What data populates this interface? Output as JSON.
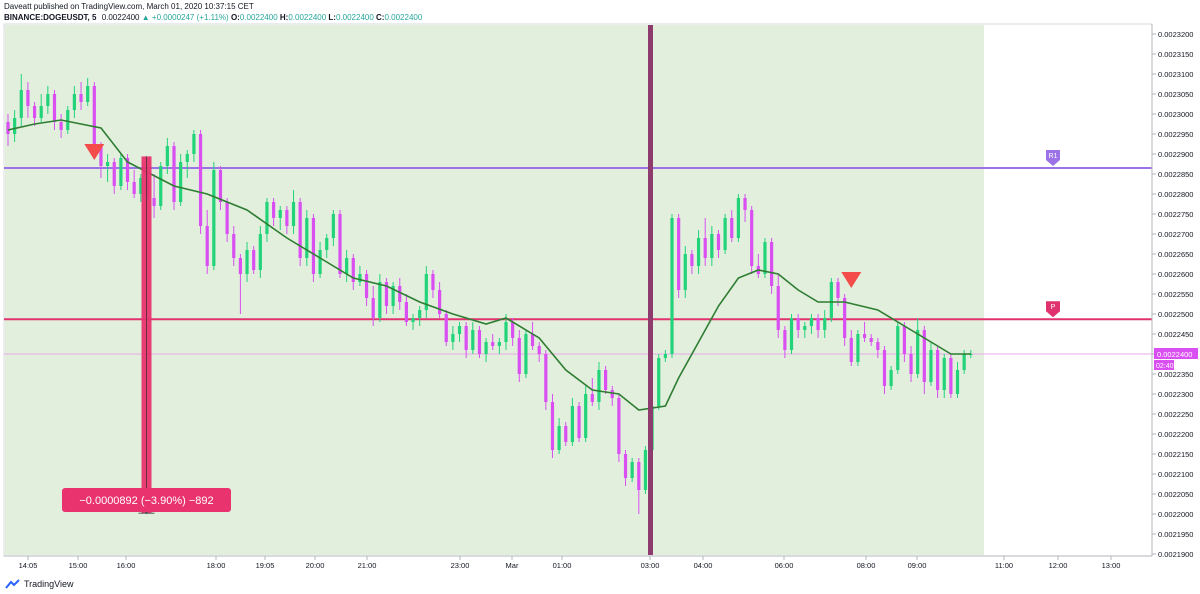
{
  "header": {
    "line1": "Daveatt published on TradingView.com, March 01, 2020 10:37:15 CET",
    "symbol": "BINANCE:DOGEUSDT, 5",
    "last": "0.0022400",
    "change": "▲ +0.0000247 (+1.11%)",
    "o_label": "O:",
    "o": "0.0022400",
    "h_label": "H:",
    "h": "0.0022400",
    "l_label": "L:",
    "l": "0.0022400",
    "c_label": "C:",
    "c": "0.0022400"
  },
  "footer": {
    "brand": "TradingView",
    "logo_icon": "tradingview-logo-icon"
  },
  "colors": {
    "bull": "#22d37a",
    "bear": "#d94ff2",
    "ema": "#2e7d32",
    "session_bg": "#e1efdc",
    "r1_line": "#9c73e6",
    "pivot_line": "#e0326e",
    "price_line": "#e8a8e8",
    "measure_bar": "#e8336f",
    "session_marker": "#8e3b6e",
    "signal": "#f44b4b"
  },
  "chart_data": {
    "type": "candlestick",
    "symbol": "BINANCE:DOGEUSDT",
    "interval": "5",
    "ylim": [
      0.00219,
      0.00232
    ],
    "y_ticks": [
      "0.0021900",
      "0.0021950",
      "0.0022000",
      "0.0022050",
      "0.0022100",
      "0.0022150",
      "0.0022200",
      "0.0022250",
      "0.0022300",
      "0.0022350",
      "0.0022400",
      "0.0022450",
      "0.0022500",
      "0.0022550",
      "0.0022600",
      "0.0022650",
      "0.0022700",
      "0.0022750",
      "0.0022800",
      "0.0022850",
      "0.0022900",
      "0.0022950",
      "0.0023000",
      "0.0023050",
      "0.0023100",
      "0.0023150",
      "0.0023200"
    ],
    "x_ticks": [
      "14:05",
      "15:00",
      "16:00",
      "18:00",
      "19:05",
      "20:00",
      "21:00",
      "23:00",
      "Mar",
      "01:00",
      "03:00",
      "04:00",
      "06:00",
      "08:00",
      "09:00",
      "11:00",
      "12:00",
      "13:00"
    ],
    "levels": [
      {
        "label": "R1",
        "value": 0.0022865
      },
      {
        "label": "P",
        "value": 0.0022487
      },
      {
        "label": "0.0022400",
        "value": 0.00224,
        "countdown": "02:40"
      }
    ],
    "measure": {
      "text": "−0.0000892 (−3.90%) −892",
      "from": 0.0022894,
      "to": 0.0022002
    },
    "session_marker_time": "03:00",
    "signals": [
      {
        "type": "sell"
      },
      {
        "type": "sell"
      }
    ],
    "ema_path": [
      [
        0,
        0.002296
      ],
      [
        4,
        0.0022975
      ],
      [
        8,
        0.0022985
      ],
      [
        14,
        0.0022965
      ],
      [
        18,
        0.002288
      ],
      [
        25,
        0.002282
      ],
      [
        30,
        0.00228
      ],
      [
        36,
        0.002276
      ],
      [
        42,
        0.002269
      ],
      [
        47,
        0.002264
      ],
      [
        52,
        0.002259
      ],
      [
        57,
        0.002257
      ],
      [
        62,
        0.002253
      ],
      [
        67,
        0.00225
      ],
      [
        72,
        0.0022475
      ],
      [
        75,
        0.002249
      ],
      [
        80,
        0.002244
      ],
      [
        84,
        0.002236
      ],
      [
        88,
        0.002231
      ],
      [
        92,
        0.00223
      ],
      [
        95,
        0.002226
      ],
      [
        99,
        0.002227
      ],
      [
        101,
        0.002234
      ],
      [
        104,
        0.002243
      ],
      [
        107,
        0.002252
      ],
      [
        110,
        0.002259
      ],
      [
        113,
        0.002261
      ],
      [
        116,
        0.00226
      ],
      [
        119,
        0.002256
      ],
      [
        122,
        0.002253
      ],
      [
        126,
        0.002253
      ],
      [
        131,
        0.002251
      ],
      [
        135,
        0.002247
      ],
      [
        139,
        0.002243
      ],
      [
        142,
        0.00224
      ],
      [
        145,
        0.00224
      ]
    ],
    "candles": [
      {
        "o": 0.002298,
        "h": 0.0023,
        "l": 0.002292,
        "c": 0.002295
      },
      {
        "o": 0.002295,
        "h": 0.002301,
        "l": 0.002293,
        "c": 0.002299
      },
      {
        "o": 0.002299,
        "h": 0.00231,
        "l": 0.002297,
        "c": 0.002306
      },
      {
        "o": 0.002306,
        "h": 0.002308,
        "l": 0.002299,
        "c": 0.002302
      },
      {
        "o": 0.002302,
        "h": 0.002303,
        "l": 0.002297,
        "c": 0.002299
      },
      {
        "o": 0.002299,
        "h": 0.002305,
        "l": 0.002298,
        "c": 0.002302
      },
      {
        "o": 0.002302,
        "h": 0.002307,
        "l": 0.0023,
        "c": 0.002305
      },
      {
        "o": 0.002305,
        "h": 0.002306,
        "l": 0.002296,
        "c": 0.002298
      },
      {
        "o": 0.002298,
        "h": 0.0023,
        "l": 0.002294,
        "c": 0.002296
      },
      {
        "o": 0.002296,
        "h": 0.002302,
        "l": 0.002295,
        "c": 0.002301
      },
      {
        "o": 0.002301,
        "h": 0.002307,
        "l": 0.002299,
        "c": 0.002305
      },
      {
        "o": 0.002305,
        "h": 0.002308,
        "l": 0.002301,
        "c": 0.002303
      },
      {
        "o": 0.002303,
        "h": 0.002309,
        "l": 0.002302,
        "c": 0.002307
      },
      {
        "o": 0.002307,
        "h": 0.002308,
        "l": 0.00229,
        "c": 0.002292
      },
      {
        "o": 0.002292,
        "h": 0.002293,
        "l": 0.002284,
        "c": 0.002287
      },
      {
        "o": 0.002287,
        "h": 0.00229,
        "l": 0.002283,
        "c": 0.002288
      },
      {
        "o": 0.002288,
        "h": 0.002289,
        "l": 0.00228,
        "c": 0.002282
      },
      {
        "o": 0.002282,
        "h": 0.00229,
        "l": 0.002281,
        "c": 0.002289
      },
      {
        "o": 0.002289,
        "h": 0.00229,
        "l": 0.002281,
        "c": 0.002283
      },
      {
        "o": 0.002283,
        "h": 0.002286,
        "l": 0.002279,
        "c": 0.00228
      },
      {
        "o": 0.00228,
        "h": 0.002285,
        "l": 0.002278,
        "c": 0.002284
      },
      {
        "o": 0.002284,
        "h": 0.002286,
        "l": 0.002278,
        "c": 0.002279
      },
      {
        "o": 0.002279,
        "h": 0.002285,
        "l": 0.002274,
        "c": 0.002277
      },
      {
        "o": 0.002277,
        "h": 0.002288,
        "l": 0.002276,
        "c": 0.002287
      },
      {
        "o": 0.002287,
        "h": 0.002294,
        "l": 0.002285,
        "c": 0.002292
      },
      {
        "o": 0.002292,
        "h": 0.002293,
        "l": 0.002276,
        "c": 0.002278
      },
      {
        "o": 0.002278,
        "h": 0.00229,
        "l": 0.002277,
        "c": 0.002288
      },
      {
        "o": 0.002288,
        "h": 0.002291,
        "l": 0.002284,
        "c": 0.00229
      },
      {
        "o": 0.00229,
        "h": 0.002296,
        "l": 0.002288,
        "c": 0.002295
      },
      {
        "o": 0.002295,
        "h": 0.002296,
        "l": 0.00227,
        "c": 0.002272
      },
      {
        "o": 0.002272,
        "h": 0.002276,
        "l": 0.00226,
        "c": 0.002262
      },
      {
        "o": 0.002262,
        "h": 0.002288,
        "l": 0.002261,
        "c": 0.002286
      },
      {
        "o": 0.002286,
        "h": 0.002287,
        "l": 0.002276,
        "c": 0.002278
      },
      {
        "o": 0.002278,
        "h": 0.002279,
        "l": 0.002268,
        "c": 0.00227
      },
      {
        "o": 0.00227,
        "h": 0.002272,
        "l": 0.002262,
        "c": 0.002264
      },
      {
        "o": 0.002264,
        "h": 0.002265,
        "l": 0.00225,
        "c": 0.00226
      },
      {
        "o": 0.00226,
        "h": 0.002268,
        "l": 0.002258,
        "c": 0.002266
      },
      {
        "o": 0.002266,
        "h": 0.002267,
        "l": 0.00226,
        "c": 0.002261
      },
      {
        "o": 0.002261,
        "h": 0.002272,
        "l": 0.002259,
        "c": 0.00227
      },
      {
        "o": 0.00227,
        "h": 0.002279,
        "l": 0.002268,
        "c": 0.002278
      },
      {
        "o": 0.002278,
        "h": 0.002279,
        "l": 0.002272,
        "c": 0.002274
      },
      {
        "o": 0.002274,
        "h": 0.002277,
        "l": 0.002271,
        "c": 0.002276
      },
      {
        "o": 0.002276,
        "h": 0.002277,
        "l": 0.00227,
        "c": 0.002272
      },
      {
        "o": 0.002272,
        "h": 0.002281,
        "l": 0.00227,
        "c": 0.002278
      },
      {
        "o": 0.002278,
        "h": 0.002279,
        "l": 0.002262,
        "c": 0.002264
      },
      {
        "o": 0.002264,
        "h": 0.002276,
        "l": 0.002262,
        "c": 0.002274
      },
      {
        "o": 0.002274,
        "h": 0.002275,
        "l": 0.002258,
        "c": 0.00226
      },
      {
        "o": 0.00226,
        "h": 0.002268,
        "l": 0.002259,
        "c": 0.002266
      },
      {
        "o": 0.002266,
        "h": 0.00227,
        "l": 0.002264,
        "c": 0.002269
      },
      {
        "o": 0.002269,
        "h": 0.002276,
        "l": 0.002267,
        "c": 0.002275
      },
      {
        "o": 0.002275,
        "h": 0.002276,
        "l": 0.002259,
        "c": 0.00226
      },
      {
        "o": 0.00226,
        "h": 0.002266,
        "l": 0.002258,
        "c": 0.002264
      },
      {
        "o": 0.002264,
        "h": 0.002265,
        "l": 0.002256,
        "c": 0.002258
      },
      {
        "o": 0.002258,
        "h": 0.002262,
        "l": 0.002257,
        "c": 0.00226
      },
      {
        "o": 0.00226,
        "h": 0.002261,
        "l": 0.002252,
        "c": 0.002254
      },
      {
        "o": 0.002254,
        "h": 0.002257,
        "l": 0.002247,
        "c": 0.002249
      },
      {
        "o": 0.002249,
        "h": 0.00226,
        "l": 0.002248,
        "c": 0.002258
      },
      {
        "o": 0.002258,
        "h": 0.002259,
        "l": 0.00225,
        "c": 0.002252
      },
      {
        "o": 0.002252,
        "h": 0.002258,
        "l": 0.00225,
        "c": 0.002257
      },
      {
        "o": 0.002257,
        "h": 0.002259,
        "l": 0.002251,
        "c": 0.002253
      },
      {
        "o": 0.002253,
        "h": 0.002255,
        "l": 0.002247,
        "c": 0.002248
      },
      {
        "o": 0.002248,
        "h": 0.00225,
        "l": 0.002246,
        "c": 0.002249
      },
      {
        "o": 0.002249,
        "h": 0.002252,
        "l": 0.002247,
        "c": 0.002251
      },
      {
        "o": 0.002251,
        "h": 0.002262,
        "l": 0.002249,
        "c": 0.00226
      },
      {
        "o": 0.00226,
        "h": 0.002261,
        "l": 0.002254,
        "c": 0.002256
      },
      {
        "o": 0.002256,
        "h": 0.002258,
        "l": 0.002249,
        "c": 0.00225
      },
      {
        "o": 0.00225,
        "h": 0.002251,
        "l": 0.002242,
        "c": 0.002243
      },
      {
        "o": 0.002243,
        "h": 0.002247,
        "l": 0.002241,
        "c": 0.002245
      },
      {
        "o": 0.002245,
        "h": 0.002248,
        "l": 0.002243,
        "c": 0.002247
      },
      {
        "o": 0.002247,
        "h": 0.002248,
        "l": 0.002239,
        "c": 0.002241
      },
      {
        "o": 0.002241,
        "h": 0.002248,
        "l": 0.00224,
        "c": 0.002246
      },
      {
        "o": 0.002246,
        "h": 0.002247,
        "l": 0.002239,
        "c": 0.00224
      },
      {
        "o": 0.00224,
        "h": 0.002244,
        "l": 0.002238,
        "c": 0.002243
      },
      {
        "o": 0.002243,
        "h": 0.002245,
        "l": 0.002241,
        "c": 0.002242
      },
      {
        "o": 0.002242,
        "h": 0.002244,
        "l": 0.00224,
        "c": 0.002243
      },
      {
        "o": 0.002243,
        "h": 0.00225,
        "l": 0.002241,
        "c": 0.002248
      },
      {
        "o": 0.002248,
        "h": 0.002249,
        "l": 0.002242,
        "c": 0.002244
      },
      {
        "o": 0.002244,
        "h": 0.002246,
        "l": 0.002233,
        "c": 0.002235
      },
      {
        "o": 0.002235,
        "h": 0.002246,
        "l": 0.002234,
        "c": 0.002245
      },
      {
        "o": 0.002245,
        "h": 0.002248,
        "l": 0.002241,
        "c": 0.002242
      },
      {
        "o": 0.002242,
        "h": 0.002243,
        "l": 0.002238,
        "c": 0.00224
      },
      {
        "o": 0.00224,
        "h": 0.002241,
        "l": 0.002226,
        "c": 0.002228
      },
      {
        "o": 0.002228,
        "h": 0.00223,
        "l": 0.002214,
        "c": 0.002216
      },
      {
        "o": 0.002216,
        "h": 0.002224,
        "l": 0.002215,
        "c": 0.002222
      },
      {
        "o": 0.002222,
        "h": 0.002223,
        "l": 0.002217,
        "c": 0.002218
      },
      {
        "o": 0.002218,
        "h": 0.002229,
        "l": 0.002217,
        "c": 0.002227
      },
      {
        "o": 0.002227,
        "h": 0.002228,
        "l": 0.002218,
        "c": 0.002219
      },
      {
        "o": 0.002219,
        "h": 0.002232,
        "l": 0.002218,
        "c": 0.00223
      },
      {
        "o": 0.00223,
        "h": 0.002234,
        "l": 0.002227,
        "c": 0.002228
      },
      {
        "o": 0.002228,
        "h": 0.002238,
        "l": 0.002226,
        "c": 0.002236
      },
      {
        "o": 0.002236,
        "h": 0.002237,
        "l": 0.00223,
        "c": 0.002231
      },
      {
        "o": 0.002231,
        "h": 0.002232,
        "l": 0.002227,
        "c": 0.002229
      },
      {
        "o": 0.002229,
        "h": 0.00223,
        "l": 0.002213,
        "c": 0.002215
      },
      {
        "o": 0.002215,
        "h": 0.002216,
        "l": 0.002207,
        "c": 0.002209
      },
      {
        "o": 0.002209,
        "h": 0.002214,
        "l": 0.002208,
        "c": 0.002213
      },
      {
        "o": 0.002213,
        "h": 0.002214,
        "l": 0.0022,
        "c": 0.002206
      },
      {
        "o": 0.002206,
        "h": 0.002217,
        "l": 0.002205,
        "c": 0.002216
      },
      {
        "o": 0.002216,
        "h": 0.002228,
        "l": 0.002214,
        "c": 0.002227
      },
      {
        "o": 0.002227,
        "h": 0.00224,
        "l": 0.002226,
        "c": 0.002239
      },
      {
        "o": 0.002239,
        "h": 0.002241,
        "l": 0.002238,
        "c": 0.00224
      },
      {
        "o": 0.00224,
        "h": 0.002275,
        "l": 0.002239,
        "c": 0.002274
      },
      {
        "o": 0.002274,
        "h": 0.002275,
        "l": 0.002254,
        "c": 0.002256
      },
      {
        "o": 0.002256,
        "h": 0.002267,
        "l": 0.002254,
        "c": 0.002265
      },
      {
        "o": 0.002265,
        "h": 0.002266,
        "l": 0.00226,
        "c": 0.002262
      },
      {
        "o": 0.002262,
        "h": 0.002271,
        "l": 0.00226,
        "c": 0.002269
      },
      {
        "o": 0.002269,
        "h": 0.002274,
        "l": 0.002262,
        "c": 0.002264
      },
      {
        "o": 0.002264,
        "h": 0.002272,
        "l": 0.002262,
        "c": 0.00227
      },
      {
        "o": 0.00227,
        "h": 0.002271,
        "l": 0.002264,
        "c": 0.002266
      },
      {
        "o": 0.002266,
        "h": 0.002275,
        "l": 0.002265,
        "c": 0.002274
      },
      {
        "o": 0.002274,
        "h": 0.002276,
        "l": 0.002268,
        "c": 0.002269
      },
      {
        "o": 0.002269,
        "h": 0.00228,
        "l": 0.002268,
        "c": 0.002279
      },
      {
        "o": 0.002279,
        "h": 0.00228,
        "l": 0.002273,
        "c": 0.002276
      },
      {
        "o": 0.002276,
        "h": 0.002277,
        "l": 0.00226,
        "c": 0.002262
      },
      {
        "o": 0.002262,
        "h": 0.002265,
        "l": 0.002259,
        "c": 0.00226
      },
      {
        "o": 0.00226,
        "h": 0.002269,
        "l": 0.002259,
        "c": 0.002268
      },
      {
        "o": 0.002268,
        "h": 0.002269,
        "l": 0.002255,
        "c": 0.002257
      },
      {
        "o": 0.002257,
        "h": 0.00226,
        "l": 0.002244,
        "c": 0.002246
      },
      {
        "o": 0.002246,
        "h": 0.002247,
        "l": 0.002239,
        "c": 0.002241
      },
      {
        "o": 0.002241,
        "h": 0.00225,
        "l": 0.00224,
        "c": 0.002249
      },
      {
        "o": 0.002249,
        "h": 0.00225,
        "l": 0.002244,
        "c": 0.002246
      },
      {
        "o": 0.002246,
        "h": 0.002248,
        "l": 0.002244,
        "c": 0.002247
      },
      {
        "o": 0.002247,
        "h": 0.00225,
        "l": 0.002245,
        "c": 0.002249
      },
      {
        "o": 0.002249,
        "h": 0.00225,
        "l": 0.002244,
        "c": 0.002246
      },
      {
        "o": 0.002246,
        "h": 0.002251,
        "l": 0.002244,
        "c": 0.002249
      },
      {
        "o": 0.002249,
        "h": 0.002259,
        "l": 0.002248,
        "c": 0.002258
      },
      {
        "o": 0.002258,
        "h": 0.002259,
        "l": 0.002252,
        "c": 0.002254
      },
      {
        "o": 0.002254,
        "h": 0.002255,
        "l": 0.002242,
        "c": 0.002244
      },
      {
        "o": 0.002244,
        "h": 0.002246,
        "l": 0.002237,
        "c": 0.002238
      },
      {
        "o": 0.002238,
        "h": 0.002246,
        "l": 0.002237,
        "c": 0.002245
      },
      {
        "o": 0.002245,
        "h": 0.002248,
        "l": 0.002243,
        "c": 0.002244
      },
      {
        "o": 0.002244,
        "h": 0.002245,
        "l": 0.002242,
        "c": 0.002243
      },
      {
        "o": 0.002243,
        "h": 0.002244,
        "l": 0.002239,
        "c": 0.002241
      },
      {
        "o": 0.002241,
        "h": 0.002242,
        "l": 0.00223,
        "c": 0.002232
      },
      {
        "o": 0.002232,
        "h": 0.002237,
        "l": 0.002231,
        "c": 0.002236
      },
      {
        "o": 0.002236,
        "h": 0.002248,
        "l": 0.002235,
        "c": 0.002247
      },
      {
        "o": 0.002247,
        "h": 0.002248,
        "l": 0.002238,
        "c": 0.00224
      },
      {
        "o": 0.00224,
        "h": 0.002242,
        "l": 0.002233,
        "c": 0.002235
      },
      {
        "o": 0.002235,
        "h": 0.002249,
        "l": 0.002234,
        "c": 0.002246
      },
      {
        "o": 0.002246,
        "h": 0.002247,
        "l": 0.00223,
        "c": 0.002233
      },
      {
        "o": 0.002233,
        "h": 0.002243,
        "l": 0.002232,
        "c": 0.002241
      },
      {
        "o": 0.002241,
        "h": 0.002242,
        "l": 0.002229,
        "c": 0.002231
      },
      {
        "o": 0.002231,
        "h": 0.00224,
        "l": 0.002229,
        "c": 0.002239
      },
      {
        "o": 0.002239,
        "h": 0.00224,
        "l": 0.002229,
        "c": 0.00223
      },
      {
        "o": 0.00223,
        "h": 0.002238,
        "l": 0.002229,
        "c": 0.002236
      },
      {
        "o": 0.002236,
        "h": 0.002241,
        "l": 0.002235,
        "c": 0.00224
      },
      {
        "o": 0.00224,
        "h": 0.002241,
        "l": 0.002239,
        "c": 0.00224
      }
    ]
  }
}
